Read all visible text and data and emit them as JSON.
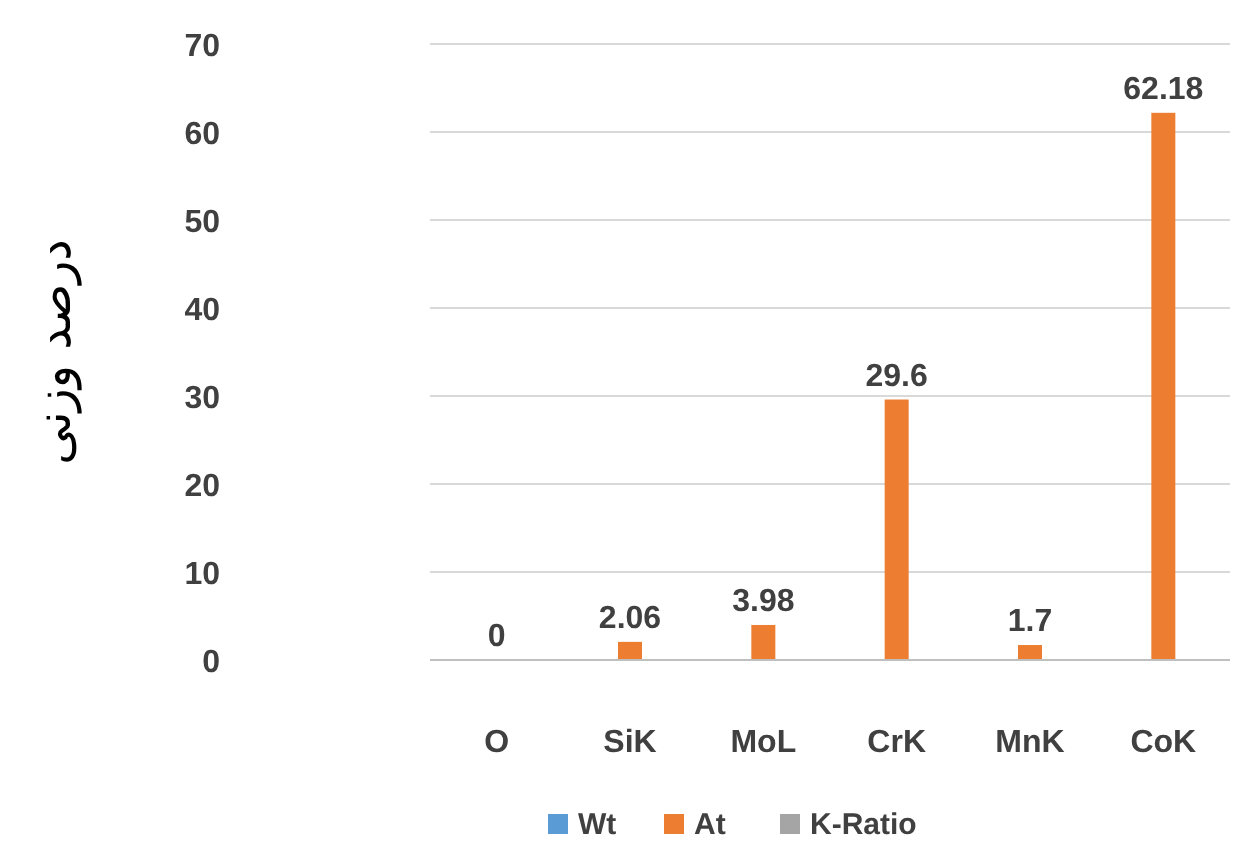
{
  "chart_data": {
    "type": "bar",
    "ylabel": "درصد وزنی",
    "categories": [
      "O",
      "SiK",
      "MoL",
      "CrK",
      "MnK",
      "CoK"
    ],
    "series": [
      {
        "name": "Wt",
        "color": "#5b9bd5",
        "values": [
          0,
          0,
          0,
          0,
          0,
          0
        ]
      },
      {
        "name": "At",
        "color": "#ed7d31",
        "values": [
          0,
          2.06,
          3.98,
          29.6,
          1.7,
          62.18
        ],
        "value_labels": [
          "0",
          "2.06",
          "3.98",
          "29.6",
          "1.7",
          "62.18"
        ]
      },
      {
        "name": "K-Ratio",
        "color": "#a5a5a5",
        "values": [
          0,
          0,
          0,
          0,
          0,
          0
        ]
      }
    ],
    "ylim": [
      0,
      70
    ],
    "yticks": [
      0,
      10,
      20,
      30,
      40,
      50,
      60,
      70
    ],
    "grid": "y",
    "legend": "bottom"
  }
}
